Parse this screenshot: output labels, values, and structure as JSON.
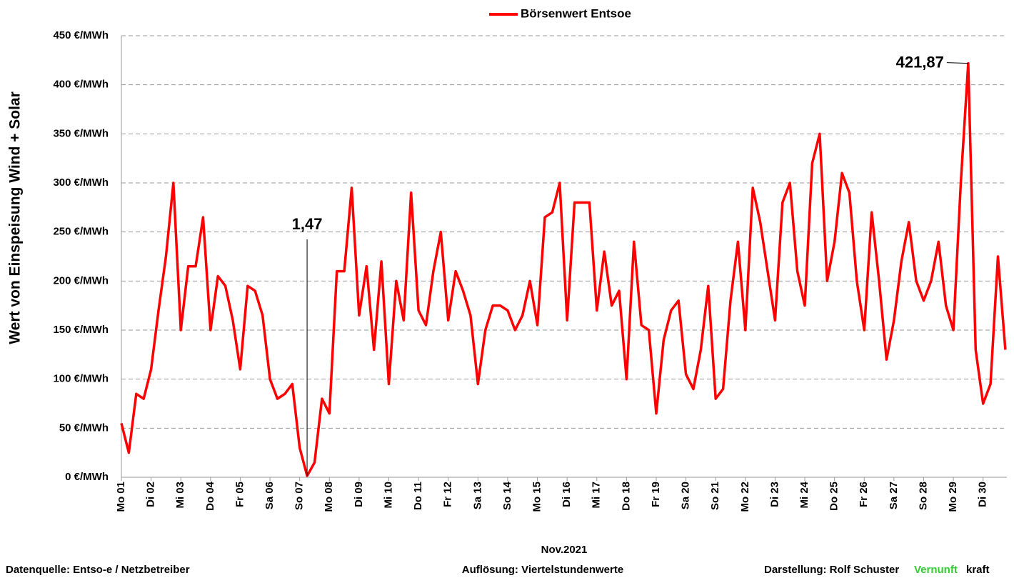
{
  "chart_data": {
    "type": "line",
    "legend_title": null,
    "y_label": "Wert von Einspeisung Wind + Solar",
    "x_label": "Nov.2021",
    "footer": {
      "source": "Datenquelle:  Entso-e  / Netzbetreiber",
      "resolution": "Auflösung: Viertelstundenwerte",
      "author": "Darstellung:  Rolf Schuster",
      "brand_green": "Vernunft",
      "brand_black": "kraft"
    },
    "ylim": [
      0,
      450
    ],
    "yticks": [
      {
        "value": 0,
        "label": "0 €/MWh"
      },
      {
        "value": 50,
        "label": "50 €/MWh"
      },
      {
        "value": 100,
        "label": "100 €/MWh"
      },
      {
        "value": 150,
        "label": "150 €/MWh"
      },
      {
        "value": 200,
        "label": "200 €/MWh"
      },
      {
        "value": 250,
        "label": "250 €/MWh"
      },
      {
        "value": 300,
        "label": "300 €/MWh"
      },
      {
        "value": 350,
        "label": "350 €/MWh"
      },
      {
        "value": 400,
        "label": "400 €/MWh"
      },
      {
        "value": 450,
        "label": "450 €/MWh"
      }
    ],
    "xlim": [
      0,
      29.8
    ],
    "xticks": [
      {
        "value": 0,
        "label": "Mo 01"
      },
      {
        "value": 1,
        "label": "Di 02"
      },
      {
        "value": 2,
        "label": "Mi 03"
      },
      {
        "value": 3,
        "label": "Do 04"
      },
      {
        "value": 4,
        "label": "Fr 05"
      },
      {
        "value": 5,
        "label": "Sa 06"
      },
      {
        "value": 6,
        "label": "So 07"
      },
      {
        "value": 7,
        "label": "Mo 08"
      },
      {
        "value": 8,
        "label": "Di 09"
      },
      {
        "value": 9,
        "label": "Mi 10"
      },
      {
        "value": 10,
        "label": "Do 11"
      },
      {
        "value": 11,
        "label": "Fr 12"
      },
      {
        "value": 12,
        "label": "Sa 13"
      },
      {
        "value": 13,
        "label": "So 14"
      },
      {
        "value": 14,
        "label": "Mo 15"
      },
      {
        "value": 15,
        "label": "Di 16"
      },
      {
        "value": 16,
        "label": "Mi 17"
      },
      {
        "value": 17,
        "label": "Do 18"
      },
      {
        "value": 18,
        "label": "Fr 19"
      },
      {
        "value": 19,
        "label": "Sa 20"
      },
      {
        "value": 20,
        "label": "So 21"
      },
      {
        "value": 21,
        "label": "Mo 22"
      },
      {
        "value": 22,
        "label": "Di 23"
      },
      {
        "value": 23,
        "label": "Mi 24"
      },
      {
        "value": 24,
        "label": "Do 25"
      },
      {
        "value": 25,
        "label": "Fr 26"
      },
      {
        "value": 26,
        "label": "Sa 27"
      },
      {
        "value": 27,
        "label": "So 28"
      },
      {
        "value": 28,
        "label": "Mo 29"
      },
      {
        "value": 29,
        "label": "Di 30"
      }
    ],
    "grid": true,
    "x": [
      0,
      0.25,
      0.5,
      0.75,
      1,
      1.25,
      1.5,
      1.75,
      2,
      2.25,
      2.5,
      2.75,
      3,
      3.25,
      3.5,
      3.75,
      4,
      4.25,
      4.5,
      4.75,
      5,
      5.25,
      5.5,
      5.75,
      6,
      6.25,
      6.5,
      6.75,
      7,
      7.25,
      7.5,
      7.75,
      8,
      8.25,
      8.5,
      8.75,
      9,
      9.25,
      9.5,
      9.75,
      10,
      10.25,
      10.5,
      10.75,
      11,
      11.25,
      11.5,
      11.75,
      12,
      12.25,
      12.5,
      12.75,
      13,
      13.25,
      13.5,
      13.75,
      14,
      14.25,
      14.5,
      14.75,
      15,
      15.25,
      15.5,
      15.75,
      16,
      16.25,
      16.5,
      16.75,
      17,
      17.25,
      17.5,
      17.75,
      18,
      18.25,
      18.5,
      18.75,
      19,
      19.25,
      19.5,
      19.75,
      20,
      20.25,
      20.5,
      20.75,
      21,
      21.25,
      21.5,
      21.75,
      22,
      22.25,
      22.5,
      22.75,
      23,
      23.25,
      23.5,
      23.75,
      24,
      24.25,
      24.5,
      24.75,
      25,
      25.25,
      25.5,
      25.75,
      26,
      26.25,
      26.5,
      26.75,
      27,
      27.25,
      27.5,
      27.75,
      28,
      28.25,
      28.5,
      28.75,
      29,
      29.25,
      29.5,
      29.75
    ],
    "series": [
      {
        "name": "Börsenwert Entsoe",
        "color": "#ff0000",
        "values": [
          55,
          25,
          85,
          80,
          110,
          170,
          225,
          300,
          150,
          215,
          215,
          265,
          150,
          205,
          195,
          160,
          110,
          195,
          190,
          165,
          100,
          80,
          85,
          95,
          30,
          1.47,
          15,
          80,
          65,
          210,
          210,
          295,
          165,
          215,
          130,
          220,
          95,
          200,
          160,
          290,
          170,
          155,
          210,
          250,
          160,
          210,
          190,
          165,
          95,
          150,
          175,
          175,
          170,
          150,
          165,
          200,
          155,
          265,
          270,
          300,
          160,
          280,
          280,
          280,
          170,
          230,
          175,
          190,
          100,
          240,
          155,
          150,
          65,
          140,
          170,
          180,
          105,
          90,
          130,
          195,
          80,
          90,
          180,
          240,
          150,
          295,
          260,
          210,
          160,
          280,
          300,
          210,
          175,
          320,
          350,
          200,
          240,
          310,
          290,
          200,
          150,
          270,
          200,
          120,
          160,
          220,
          260,
          200,
          180,
          200,
          240,
          175,
          150,
          300,
          421.87,
          130,
          75,
          95,
          225,
          130
        ],
        "value_labels": [
          null,
          null,
          null,
          null,
          null,
          null,
          null,
          null,
          null,
          null,
          null,
          null,
          null,
          null,
          null,
          null,
          null,
          null,
          null,
          null,
          null,
          null,
          null,
          null,
          null,
          "1,47",
          null,
          null,
          null,
          null,
          null,
          null,
          null,
          null,
          null,
          null,
          null,
          null,
          null,
          null,
          null,
          null,
          null,
          null,
          null,
          null,
          null,
          null,
          null,
          null,
          null,
          null,
          null,
          null,
          null,
          null,
          null,
          null,
          null,
          null,
          null,
          null,
          null,
          null,
          null,
          null,
          null,
          null,
          null,
          null,
          null,
          null,
          null,
          null,
          null,
          null,
          null,
          null,
          null,
          null,
          null,
          null,
          null,
          null,
          null,
          null,
          null,
          null,
          null,
          null,
          null,
          null,
          null,
          null,
          null,
          null,
          null,
          null,
          null,
          null,
          null,
          null,
          null,
          null,
          null,
          null,
          null,
          null,
          null,
          null,
          null,
          null,
          null,
          null,
          "421,87",
          null,
          null,
          null,
          null,
          null
        ]
      }
    ]
  }
}
